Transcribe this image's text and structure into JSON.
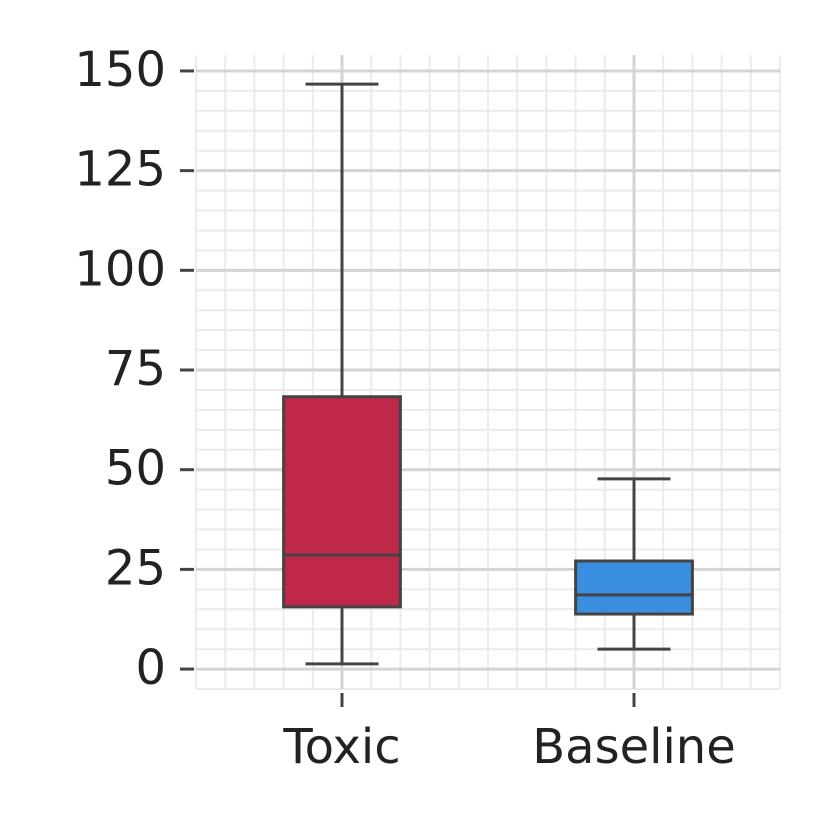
{
  "chart_data": {
    "type": "box",
    "categories": [
      "Toxic",
      "Baseline"
    ],
    "boxes": [
      {
        "whislo": 1.3,
        "q1": 15.6,
        "med": 28.6,
        "q3": 68.3,
        "whishi": 146.7,
        "color": "#c0284a"
      },
      {
        "whislo": 5.0,
        "q1": 13.8,
        "med": 18.6,
        "q3": 27.1,
        "whishi": 47.7,
        "color": "#3a8ee0"
      }
    ],
    "ylim": [
      -5,
      154
    ],
    "yticks": [
      0,
      25,
      50,
      75,
      100,
      125,
      150
    ],
    "grid": true,
    "minor_grid": true
  }
}
